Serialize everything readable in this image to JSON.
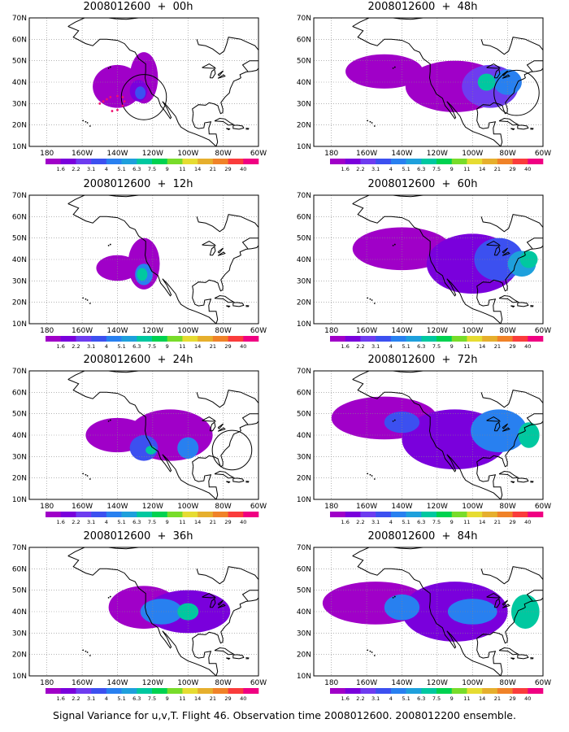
{
  "lat_ticks": [
    "70N",
    "60N",
    "50N",
    "40N",
    "30N",
    "20N",
    "10N"
  ],
  "lon_ticks": [
    "180",
    "160W",
    "140W",
    "120W",
    "100W",
    "80W",
    "60W"
  ],
  "colorbar": {
    "labels": [
      "1.6",
      "2.2",
      "3.1",
      "4",
      "5.1",
      "6.3",
      "7.5",
      "9",
      "11",
      "14",
      "21",
      "29",
      "40"
    ],
    "colors": [
      "#a000c8",
      "#7a00dc",
      "#6e3cf0",
      "#3c50f0",
      "#2880f0",
      "#1ea0dc",
      "#00c8a0",
      "#00d250",
      "#78dc2a",
      "#e6dc32",
      "#e6af2d",
      "#f08228",
      "#fa3c3c",
      "#f00082"
    ]
  },
  "panels": [
    {
      "title": "2008012600  +  00h"
    },
    {
      "title": "2008012600  +  48h"
    },
    {
      "title": "2008012600  +  12h"
    },
    {
      "title": "2008012600  +  60h"
    },
    {
      "title": "2008012600  +  24h"
    },
    {
      "title": "2008012600  +  72h"
    },
    {
      "title": "2008012600  +  36h"
    },
    {
      "title": "2008012600  +  84h"
    }
  ],
  "caption": "Signal Variance for u,v,T. Flight 46. Observation time 2008012600. 2008012200 ensemble."
}
